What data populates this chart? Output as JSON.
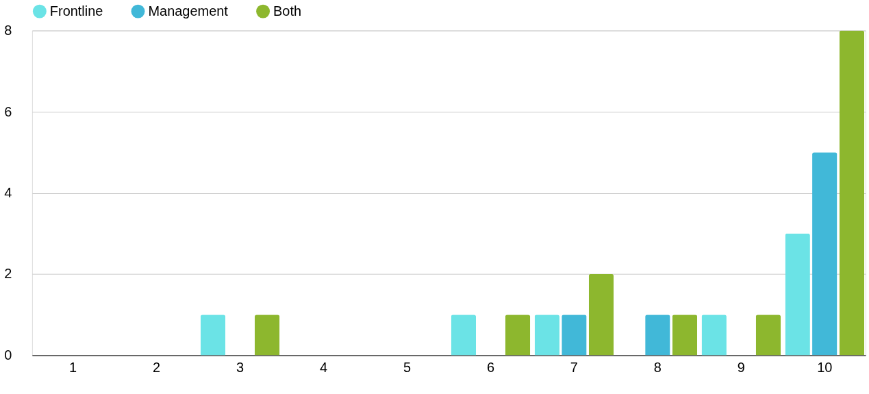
{
  "chart_data": {
    "type": "bar",
    "categories": [
      "1",
      "2",
      "3",
      "4",
      "5",
      "6",
      "7",
      "8",
      "9",
      "10"
    ],
    "series": [
      {
        "name": "Frontline",
        "color": "#6be3e6",
        "values": [
          0,
          0,
          1,
          0,
          0,
          1,
          1,
          0,
          1,
          3
        ]
      },
      {
        "name": "Management",
        "color": "#41b8d8",
        "values": [
          0,
          0,
          0,
          0,
          0,
          0,
          1,
          1,
          0,
          5
        ]
      },
      {
        "name": "Both",
        "color": "#8db72e",
        "values": [
          0,
          0,
          1,
          0,
          0,
          1,
          2,
          1,
          1,
          8
        ]
      }
    ],
    "ylim": [
      0,
      8
    ],
    "yticks": [
      0,
      2,
      4,
      6,
      8
    ],
    "grid": "y",
    "legend": "top"
  }
}
